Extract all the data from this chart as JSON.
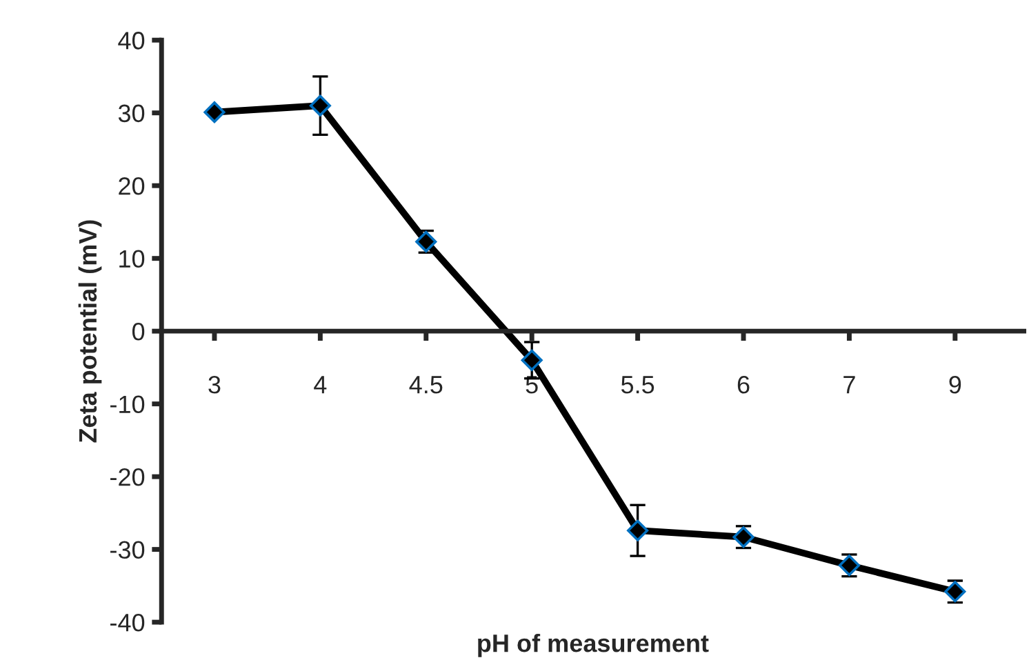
{
  "chart_data": {
    "type": "line",
    "xlabel": "pH of measurement",
    "ylabel": "Zeta potential (mV)",
    "categories": [
      "3",
      "4",
      "4.5",
      "5",
      "5.5",
      "6",
      "7",
      "9"
    ],
    "series": [
      {
        "color": "#000000",
        "values": [
          30.1,
          31,
          12.3,
          -4,
          -27.4,
          -28.3,
          -32.2,
          -35.8
        ],
        "errors": [
          null,
          4,
          1.5,
          2.5,
          3.5,
          1.5,
          1.5,
          1.5
        ]
      }
    ],
    "ylim": [
      -40,
      40
    ],
    "yticks": [
      -40,
      -30,
      -20,
      -10,
      0,
      10,
      20,
      30,
      40
    ],
    "grid": false,
    "legend": false,
    "marker": "diamond",
    "line_style": "solid"
  }
}
